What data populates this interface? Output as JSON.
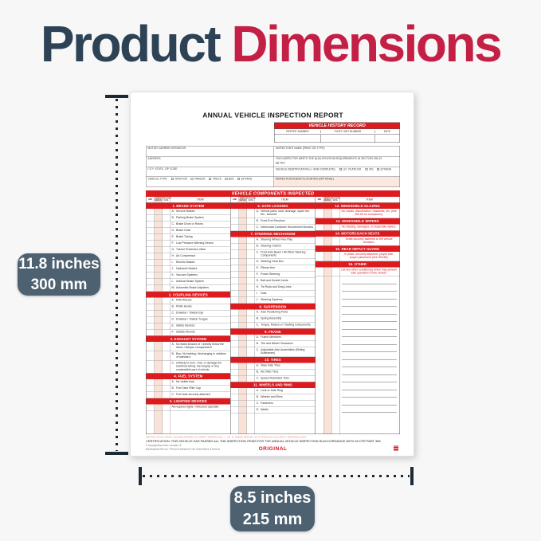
{
  "title": {
    "word1": "Product",
    "word2": "Dimensions"
  },
  "colors": {
    "navy": "#2e4256",
    "crimson": "#c41f45",
    "form_red": "#dd1a1e",
    "label_bg": "#4e6170",
    "shade_pink": "#f9e2d8"
  },
  "dimensions": {
    "height_label": {
      "line1": "11.8 inches",
      "line2": "300 mm"
    },
    "width_label": {
      "line1": "8.5 inches",
      "line2": "215 mm"
    }
  },
  "form": {
    "title": "ANNUAL VEHICLE INSPECTION REPORT",
    "history": {
      "title": "VEHICLE HISTORY RECORD",
      "columns": [
        "REPORT NUMBER",
        "FLEET UNIT NUMBER",
        "DATE"
      ]
    },
    "info_left": [
      {
        "label": "MOTOR CARRIER OPERATOR"
      },
      {
        "label": "ADDRESS"
      },
      {
        "label": "CITY, STATE, ZIP CODE"
      },
      {
        "label": "VEHICLE TYPE:",
        "options": [
          "TRACTOR",
          "TRAILER",
          "TRUCK",
          "BUS",
          "(OTHER)"
        ],
        "inline": true
      }
    ],
    "info_right": [
      {
        "label": "INSPECTOR'S NAME (PRINT OR TYPE)"
      },
      {
        "label": "THIS INSPECTOR MEETS THE QUALIFICATION REQUIREMENTS IN SECTION 396.19",
        "options": [
          "YES"
        ],
        "inline": false
      },
      {
        "label": "VEHICLE IDENTIFICATION (✓ AND COMPLETE):",
        "options": [
          "LIC. PLATE NO.",
          "VIN",
          "(OTHER)"
        ],
        "inline": true
      },
      {
        "label": "INSPECTION AGENCY/LOCATION (OPTIONAL)",
        "highlight": true
      }
    ],
    "components_title": "VEHICLE COMPONENTS INSPECTED",
    "col_headers": [
      "OK",
      "NEEDS REPAIR",
      "REPAIRED DATE",
      "ITEM"
    ],
    "groups": [
      {
        "red_text": false,
        "sections": [
          {
            "title": "1. BRAKE SYSTEM",
            "items": [
              {
                "letter": "A.",
                "text": "Service Brakes"
              },
              {
                "letter": "B.",
                "text": "Parking Brake System"
              },
              {
                "letter": "C.",
                "text": "Brake Drum or Rotors"
              },
              {
                "letter": "D.",
                "text": "Brake Hose"
              },
              {
                "letter": "E.",
                "text": "Brake Tubing"
              },
              {
                "letter": "F.",
                "text": "Low Pressure Warning Device"
              },
              {
                "letter": "G.",
                "text": "Tractor Protection Valve"
              },
              {
                "letter": "H.",
                "text": "Air Compressor"
              },
              {
                "letter": "I.",
                "text": "Electric Brakes"
              },
              {
                "letter": "J.",
                "text": "Hydraulic Brakes"
              },
              {
                "letter": "K.",
                "text": "Vacuum Systems"
              },
              {
                "letter": "L.",
                "text": "Antilock Brake System"
              },
              {
                "letter": "M.",
                "text": "Automatic Brake Adjusters"
              }
            ]
          },
          {
            "title": "2. COUPLING DEVICES",
            "items": [
              {
                "letter": "A.",
                "text": "Fifth Wheels"
              },
              {
                "letter": "B.",
                "text": "Pintle Hooks"
              },
              {
                "letter": "C.",
                "text": "Drawbar / Towbar Eye"
              },
              {
                "letter": "D.",
                "text": "Drawbar / Towbar Tongue"
              },
              {
                "letter": "E.",
                "text": "Safety Devices"
              },
              {
                "letter": "F.",
                "text": "Saddle-Mounts"
              }
            ]
          },
          {
            "title": "3. EXHAUST SYSTEM",
            "items": [
              {
                "letter": "A.",
                "text": "No leaks forward of / directly below the driver / sleeper compartment."
              },
              {
                "letter": "B.",
                "text": "Bus: No leaking / discharging in violation of standard."
              },
              {
                "letter": "C.",
                "text": "Unlikely to burn, char, or damage the electrical wiring, fuel supply, or any combustible part of vehicle."
              }
            ]
          },
          {
            "title": "4. FUEL SYSTEM",
            "items": [
              {
                "letter": "A.",
                "text": "No visible leak."
              },
              {
                "letter": "B.",
                "text": "Fuel Tank Filler Cap"
              },
              {
                "letter": "C.",
                "text": "Fuel tank securely attached"
              }
            ]
          },
          {
            "title": "5. LIGHTING DEVICES",
            "items": [
              {
                "letter": "",
                "text": "All required lights / reflectors operable."
              }
            ]
          }
        ]
      },
      {
        "red_text": false,
        "sections": [
          {
            "title": "6. SAFE LOADING",
            "items": [
              {
                "letter": "A.",
                "text": "Vehicle parts, load, dunnage, spare tire, etc., secured."
              },
              {
                "letter": "B.",
                "text": "Front End Structure"
              },
              {
                "letter": "C.",
                "text": "Intermodal Container Securement Devices"
              }
            ]
          },
          {
            "title": "7. STEERING MECHANISM",
            "items": [
              {
                "letter": "A.",
                "text": "Steering Wheel Free Play"
              },
              {
                "letter": "B.",
                "text": "Steering Column"
              },
              {
                "letter": "C.",
                "text": "Front Axle Beam / All Other Steering Components"
              },
              {
                "letter": "D.",
                "text": "Steering Gear Box"
              },
              {
                "letter": "E.",
                "text": "Pitman Arm"
              },
              {
                "letter": "F.",
                "text": "Power Steering"
              },
              {
                "letter": "G.",
                "text": "Ball and Socket Joints"
              },
              {
                "letter": "H.",
                "text": "Tie Rods and Drag Links"
              },
              {
                "letter": "I.",
                "text": "Nuts"
              },
              {
                "letter": "J.",
                "text": "Steering Systems"
              }
            ]
          },
          {
            "title": "8. SUSPENSION",
            "items": [
              {
                "letter": "A.",
                "text": "Axle Positioning Parts"
              },
              {
                "letter": "B.",
                "text": "Spring Assembly"
              },
              {
                "letter": "C.",
                "text": "Torque, Radius or Tracking Components"
              }
            ]
          },
          {
            "title": "9. FRAME",
            "items": [
              {
                "letter": "A.",
                "text": "Frame Members"
              },
              {
                "letter": "B.",
                "text": "Tire and Wheel Clearance"
              },
              {
                "letter": "C.",
                "text": "Adjustable Axle Assemblies (Sliding Subframes)"
              }
            ]
          },
          {
            "title": "10. TIRES",
            "items": [
              {
                "letter": "A.",
                "text": "Steer Axle Tires"
              },
              {
                "letter": "B.",
                "text": "All Other Tires"
              },
              {
                "letter": "C.",
                "text": "Speed-Restricted Tires"
              }
            ]
          },
          {
            "title": "11. WHEELS AND RIMS",
            "items": [
              {
                "letter": "A.",
                "text": "Lock or Side Ring"
              },
              {
                "letter": "B.",
                "text": "Wheels and Rims"
              },
              {
                "letter": "C.",
                "text": "Fasteners"
              },
              {
                "letter": "D.",
                "text": "Welds"
              }
            ]
          }
        ]
      },
      {
        "red_text": true,
        "sections": [
          {
            "title": "12. WINDSHIELD GLAZING",
            "items": [
              {
                "letter": "",
                "text": "No cracks, discoloration, obstacles, etc. (see 393.60 for exceptions)."
              }
            ]
          },
          {
            "title": "13. WINDSHIELD WIPERS",
            "items": [
              {
                "letter": "",
                "text": "No missing, damaged, or inoperable wipers."
              }
            ]
          },
          {
            "title": "14. MOTORCOACH SEATS",
            "items": [
              {
                "letter": "",
                "text": "Seats securely fastened to the vehicle structure."
              }
            ]
          },
          {
            "title": "15. REAR IMPACT GUARD",
            "items": [
              {
                "letter": "",
                "text": "In place, securely attached, proper size, proper placement (see 393.86)."
              }
            ]
          },
          {
            "title": "16. OTHER",
            "items": [
              {
                "letter": "",
                "text": "List any other condition(s) which may prevent safe operation of this vehicle."
              }
            ],
            "ruled_lines": 18
          }
        ]
      }
    ],
    "footer": {
      "instructions": "INSTRUCTIONS: MARK COLUMN ENTRIES TO VERIFY INSPECTION:  ✓. OK.   B. NEEDS REPAIR.   NA. IF ITEMS DO NOT APPLY.   REPAIRED DATE",
      "certification": "CERTIFICATION: THIS VEHICLE HAS PASSED ALL THE INSPECTION ITEMS FOR THE ANNUAL VEHICLE INSPECTION IN ACCORDANCE WITH 49 CFR PART 396.",
      "copyright1": "© Copyright Buck USA • Tomball, TX",
      "copyright2": "BuckSuppliesUSA.com • Printed & Designed in the United States of America",
      "original": "ORIGINAL"
    }
  }
}
